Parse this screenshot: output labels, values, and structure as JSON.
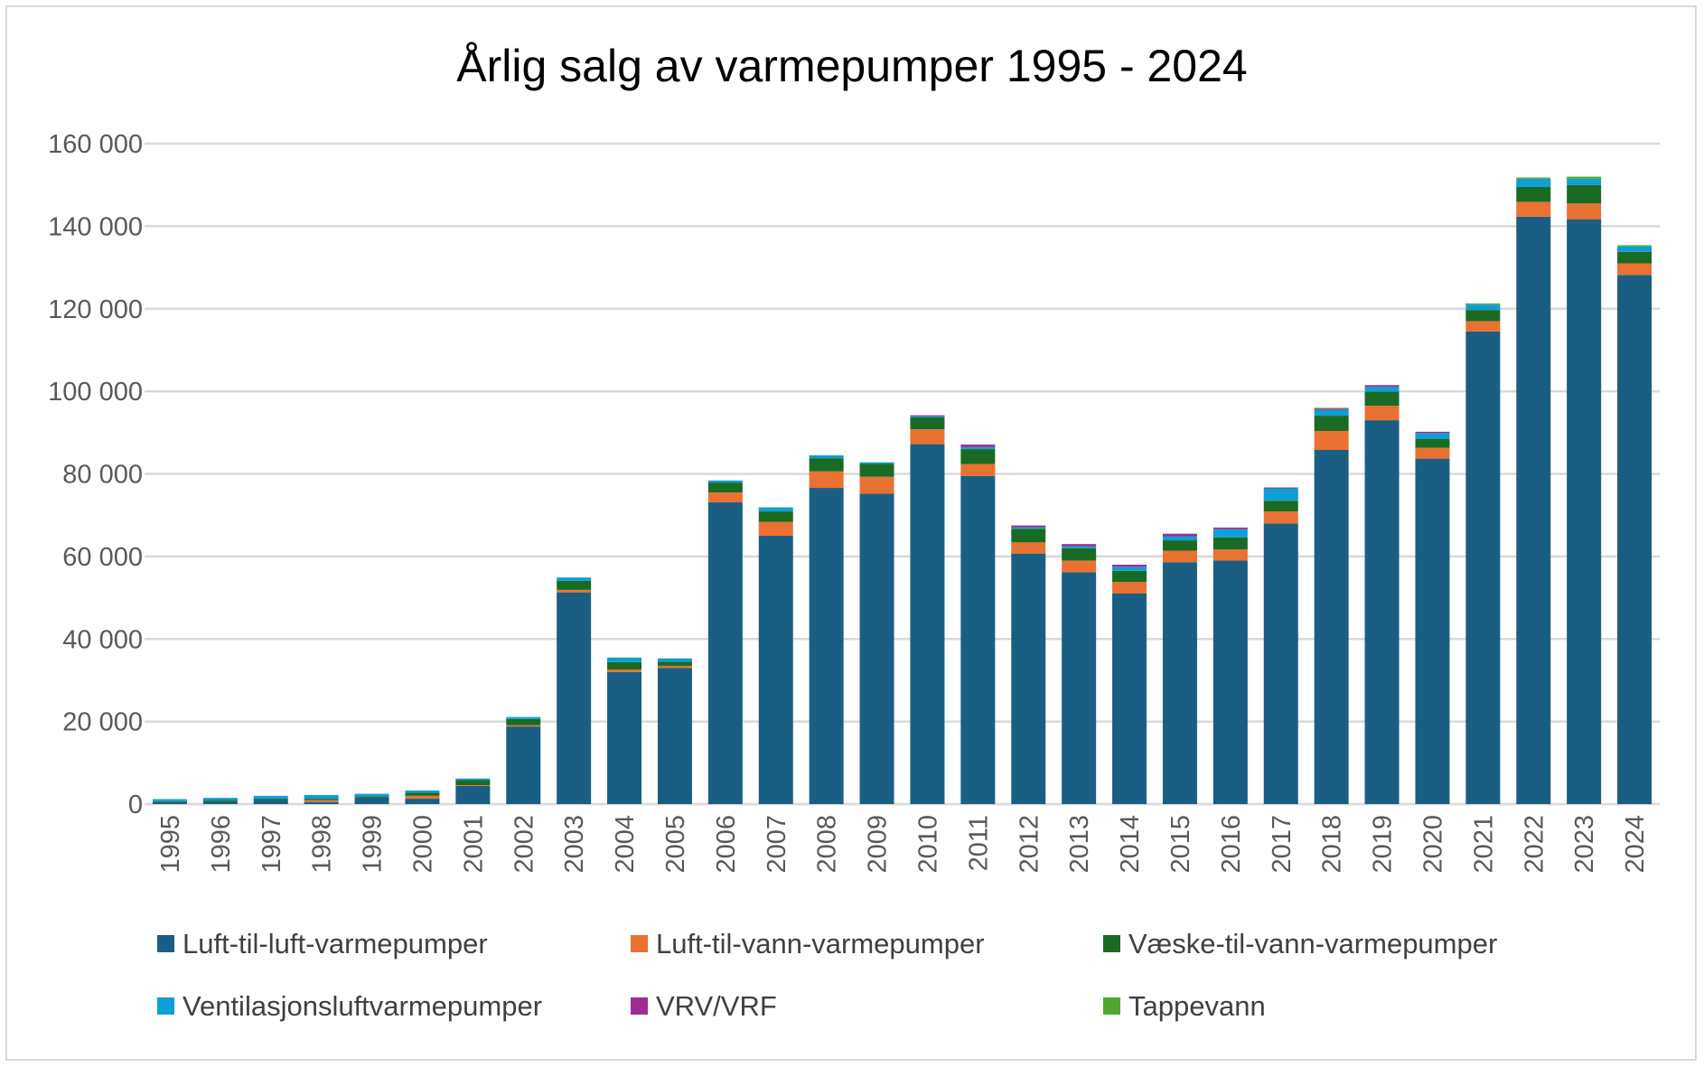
{
  "chart_data": {
    "type": "bar",
    "stacked": true,
    "title": "Årlig salg av varmepumper 1995 - 2024",
    "xlabel": "",
    "ylabel": "",
    "ylim": [
      0,
      160000
    ],
    "yticks": [
      0,
      20000,
      40000,
      60000,
      80000,
      100000,
      120000,
      140000,
      160000
    ],
    "ytick_labels": [
      "0",
      "20 000",
      "40 000",
      "60 000",
      "80 000",
      "100 000",
      "120 000",
      "140 000",
      "160 000"
    ],
    "grid": true,
    "legend": "bottom",
    "categories": [
      "1995",
      "1996",
      "1997",
      "1998",
      "1999",
      "2000",
      "2001",
      "2002",
      "2003",
      "2004",
      "2005",
      "2006",
      "2007",
      "2008",
      "2009",
      "2010",
      "2011",
      "2012",
      "2013",
      "2014",
      "2015",
      "2016",
      "2017",
      "2018",
      "2019",
      "2020",
      "2021",
      "2022",
      "2023",
      "2024"
    ],
    "series": [
      {
        "name": "Luft-til-luft-varmepumper",
        "color": "#1a5f83",
        "values": [
          500,
          700,
          1000,
          500,
          1600,
          1300,
          4400,
          18800,
          51300,
          32000,
          33000,
          73100,
          65000,
          76600,
          75200,
          87200,
          79500,
          60700,
          56200,
          51000,
          58600,
          59000,
          68000,
          85800,
          93000,
          83700,
          114500,
          142300,
          141700,
          128200
        ]
      },
      {
        "name": "Luft-til-vann-varmepumper",
        "color": "#e97132",
        "values": [
          0,
          0,
          0,
          500,
          0,
          700,
          200,
          300,
          600,
          600,
          500,
          2400,
          3400,
          4000,
          4100,
          3600,
          2900,
          2700,
          2800,
          2800,
          2800,
          2700,
          2900,
          4600,
          3500,
          2600,
          2500,
          3600,
          3800,
          2800
        ]
      },
      {
        "name": "Væske-til-vann-varmepumper",
        "color": "#196b24",
        "values": [
          200,
          300,
          300,
          300,
          300,
          800,
          1200,
          1500,
          2200,
          1800,
          1000,
          2400,
          2500,
          3200,
          3100,
          2900,
          3600,
          3300,
          3000,
          2700,
          2500,
          2900,
          2600,
          3700,
          3400,
          2200,
          2700,
          3600,
          4500,
          2800
        ]
      },
      {
        "name": "Ventilasjonsluftvarmepumper",
        "color": "#0f9ed5",
        "values": [
          500,
          500,
          700,
          900,
          600,
          500,
          400,
          500,
          800,
          1100,
          800,
          500,
          1000,
          700,
          400,
          300,
          500,
          400,
          500,
          1000,
          1000,
          2000,
          3000,
          1400,
          1200,
          1400,
          1300,
          2000,
          1500,
          1300
        ]
      },
      {
        "name": "VRV/VRF",
        "color": "#a02b93",
        "values": [
          0,
          0,
          0,
          0,
          0,
          0,
          0,
          0,
          0,
          0,
          0,
          0,
          0,
          0,
          0,
          200,
          600,
          400,
          500,
          500,
          600,
          400,
          200,
          300,
          400,
          300,
          0,
          0,
          0,
          0
        ]
      },
      {
        "name": "Tappevann",
        "color": "#4ea72e",
        "values": [
          0,
          0,
          0,
          0,
          0,
          0,
          0,
          0,
          0,
          0,
          0,
          0,
          0,
          0,
          0,
          0,
          0,
          0,
          0,
          0,
          0,
          0,
          0,
          200,
          0,
          0,
          300,
          300,
          500,
          300
        ]
      }
    ]
  }
}
